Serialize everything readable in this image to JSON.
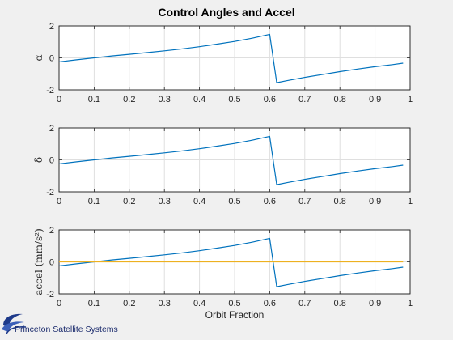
{
  "figure": {
    "background": "#f0f0f0",
    "logo_text": "Princeton Satellite Systems",
    "logo_color": "#1e3a8a"
  },
  "chart_data": [
    {
      "type": "line",
      "title": "Control Angles and Accel",
      "xlabel": "",
      "ylabel": "α",
      "xlim": [
        0,
        1
      ],
      "ylim": [
        -2,
        2
      ],
      "xticks": [
        "0",
        "0.1",
        "0.2",
        "0.3",
        "0.4",
        "0.5",
        "0.6",
        "0.7",
        "0.8",
        "0.9",
        "1"
      ],
      "yticks": [
        "-2",
        "0",
        "2"
      ],
      "grid": true,
      "series": [
        {
          "color": "#0072bd",
          "x": [
            0,
            0.05,
            0.1,
            0.15,
            0.2,
            0.25,
            0.3,
            0.35,
            0.4,
            0.45,
            0.5,
            0.55,
            0.6,
            0.62,
            0.65,
            0.7,
            0.75,
            0.8,
            0.85,
            0.9,
            0.95,
            0.98
          ],
          "y": [
            -0.25,
            -0.12,
            0.0,
            0.12,
            0.22,
            0.33,
            0.44,
            0.56,
            0.7,
            0.86,
            1.03,
            1.23,
            1.47,
            -1.55,
            -1.42,
            -1.22,
            -1.04,
            -0.86,
            -0.7,
            -0.55,
            -0.42,
            -0.33
          ]
        }
      ]
    },
    {
      "type": "line",
      "title": "",
      "xlabel": "",
      "ylabel": "δ",
      "xlim": [
        0,
        1
      ],
      "ylim": [
        -2,
        2
      ],
      "xticks": [
        "0",
        "0.1",
        "0.2",
        "0.3",
        "0.4",
        "0.5",
        "0.6",
        "0.7",
        "0.8",
        "0.9",
        "1"
      ],
      "yticks": [
        "-2",
        "0",
        "2"
      ],
      "grid": true,
      "series": [
        {
          "color": "#0072bd",
          "x": [
            0,
            0.05,
            0.1,
            0.15,
            0.2,
            0.25,
            0.3,
            0.35,
            0.4,
            0.45,
            0.5,
            0.55,
            0.6,
            0.62,
            0.65,
            0.7,
            0.75,
            0.8,
            0.85,
            0.9,
            0.95,
            0.98
          ],
          "y": [
            -0.25,
            -0.12,
            0.0,
            0.12,
            0.22,
            0.33,
            0.44,
            0.56,
            0.7,
            0.86,
            1.03,
            1.23,
            1.47,
            -1.55,
            -1.42,
            -1.22,
            -1.04,
            -0.86,
            -0.7,
            -0.55,
            -0.42,
            -0.33
          ]
        }
      ]
    },
    {
      "type": "line",
      "title": "",
      "xlabel": "Orbit Fraction",
      "ylabel": "accel (mm/s²)",
      "xlim": [
        0,
        1
      ],
      "ylim": [
        -2,
        2
      ],
      "xticks": [
        "0",
        "0.1",
        "0.2",
        "0.3",
        "0.4",
        "0.5",
        "0.6",
        "0.7",
        "0.8",
        "0.9",
        "1"
      ],
      "yticks": [
        "-2",
        "0",
        "2"
      ],
      "grid": true,
      "series": [
        {
          "color": "#0072bd",
          "x": [
            0,
            0.05,
            0.1,
            0.15,
            0.2,
            0.25,
            0.3,
            0.35,
            0.4,
            0.45,
            0.5,
            0.55,
            0.6,
            0.62,
            0.65,
            0.7,
            0.75,
            0.8,
            0.85,
            0.9,
            0.95,
            0.98
          ],
          "y": [
            -0.25,
            -0.12,
            0.0,
            0.12,
            0.22,
            0.33,
            0.44,
            0.56,
            0.7,
            0.86,
            1.03,
            1.23,
            1.47,
            -1.55,
            -1.42,
            -1.22,
            -1.04,
            -0.86,
            -0.7,
            -0.55,
            -0.42,
            -0.33
          ]
        },
        {
          "color": "#edb120",
          "x": [
            0,
            0.98
          ],
          "y": [
            0,
            0
          ]
        }
      ]
    }
  ]
}
